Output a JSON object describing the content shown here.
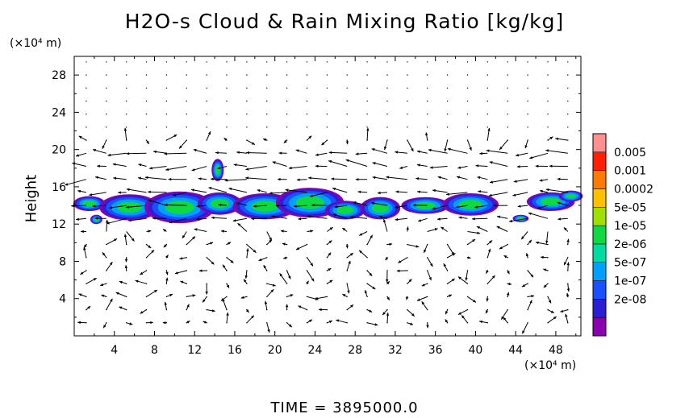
{
  "title": "H2O-s Cloud & Rain Mixing Ratio [kg/kg]",
  "y_unit": "(×10⁴ m)",
  "x_unit": "(×10⁴ m)",
  "ylabel": "Height",
  "time_label": "TIME = 3895000.0",
  "colors": {
    "levels": [
      "#8a00b0",
      "#2b1fd6",
      "#1a50ff",
      "#00a0ff",
      "#00dca0",
      "#10d840",
      "#a0e000",
      "#ffc000",
      "#ff7a00",
      "#ff2000",
      "#ff9090"
    ]
  },
  "chart_data": {
    "type": "heatmap",
    "title": "H2O-s Cloud & Rain Mixing Ratio [kg/kg]",
    "xlabel": "(×10⁴ m)",
    "ylabel": "Height",
    "xlim": [
      0,
      50.5
    ],
    "ylim": [
      0,
      30
    ],
    "x_ticks": [
      "4",
      "8",
      "12",
      "16",
      "20",
      "24",
      "28",
      "32",
      "36",
      "40",
      "44",
      "48"
    ],
    "y_ticks": [
      "4",
      "8",
      "12",
      "16",
      "20",
      "24",
      "28"
    ],
    "colorbar_labels": [
      "0.005",
      "0.001",
      "0.0002",
      "5e-05",
      "1e-05",
      "2e-06",
      "5e-07",
      "1e-07",
      "2e-08"
    ],
    "cloud_layer_y_range": [
      12,
      16
    ],
    "vector_overlay": "wind vectors"
  }
}
